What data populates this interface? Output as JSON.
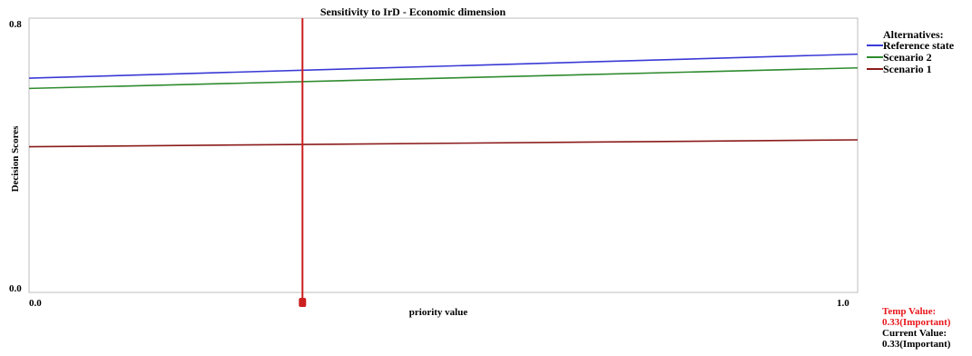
{
  "chart_data": {
    "type": "line",
    "title": "Sensitivity to IrD - Economic dimension",
    "xlabel": "priority value",
    "ylabel": "Decision Scores",
    "xlim": [
      0.0,
      1.0
    ],
    "ylim": [
      0.0,
      0.8
    ],
    "x_tick_labels": [
      "0.0",
      "1.0"
    ],
    "y_tick_labels": [
      "0.8",
      "0.0"
    ],
    "grid": false,
    "legend": {
      "title": "Alternatives:",
      "placement": "right-top"
    },
    "series": [
      {
        "name": "Reference state",
        "color": "#3a3ad6",
        "x": [
          0.0,
          1.0
        ],
        "y": [
          0.625,
          0.695
        ]
      },
      {
        "name": "Scenario 2",
        "color": "#2e8b2e",
        "x": [
          0.0,
          1.0
        ],
        "y": [
          0.595,
          0.655
        ]
      },
      {
        "name": "Scenario 1",
        "color": "#8b1a1a",
        "x": [
          0.0,
          1.0
        ],
        "y": [
          0.425,
          0.445
        ]
      }
    ],
    "marker_line": {
      "x": 0.33,
      "color": "#cc1f1f"
    }
  },
  "value_panel": {
    "temp_label": "Temp Value:",
    "temp_value": "0.33(Important)",
    "current_label": "Current Value:",
    "current_value": "0.33(Important)"
  }
}
